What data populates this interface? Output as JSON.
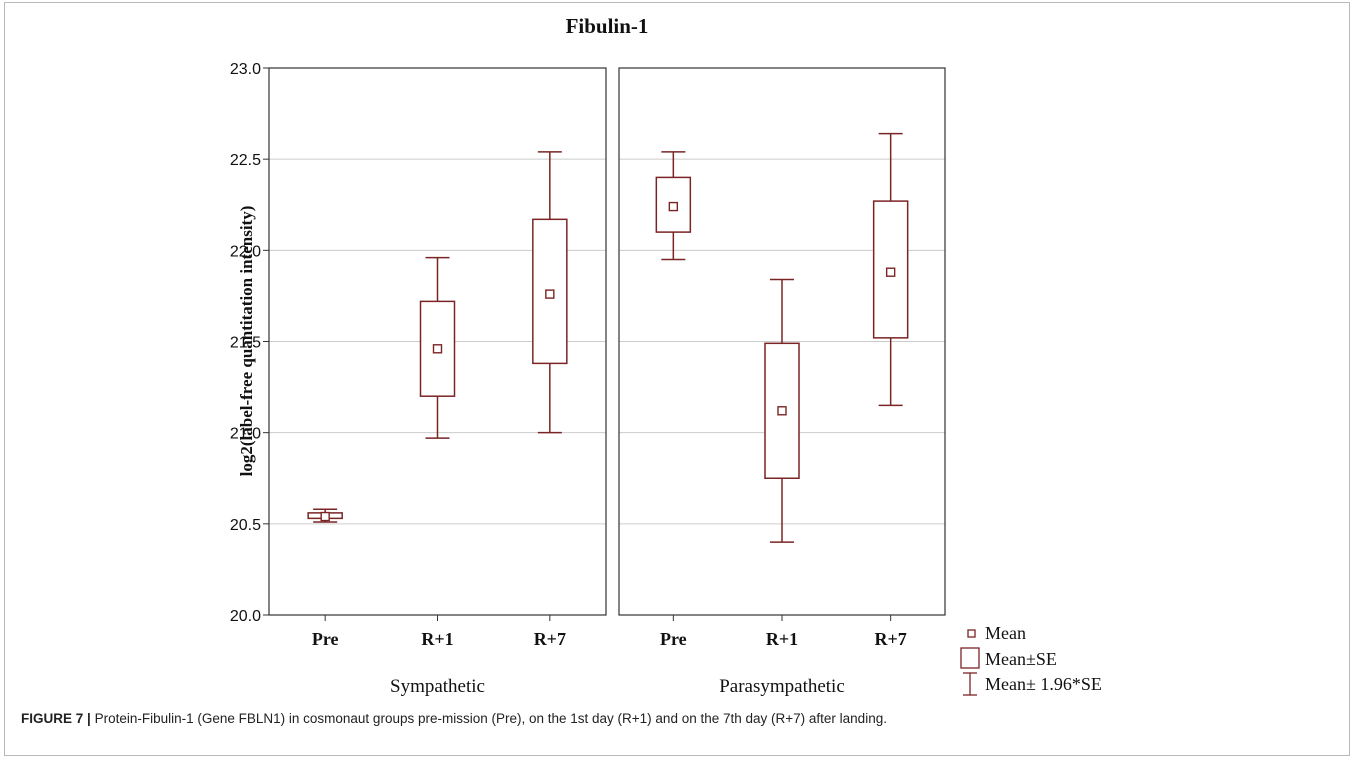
{
  "chart_data": {
    "type": "boxplot",
    "title": "Fibulin-1",
    "ylabel": "log2(label-free quantitation intensity)",
    "ylim": [
      20.0,
      23.0
    ],
    "yticks": [
      "20.0",
      "20.5",
      "21.0",
      "21.5",
      "22.0",
      "22.5",
      "23.0"
    ],
    "grid": true,
    "panels": [
      {
        "name": "Sympathetic",
        "categories": [
          "Pre",
          "R+1",
          "R+7"
        ],
        "mean": [
          20.54,
          21.46,
          21.76
        ],
        "se_low": [
          20.53,
          21.2,
          21.38
        ],
        "se_high": [
          20.56,
          21.72,
          22.17
        ],
        "ci_low": [
          20.51,
          20.97,
          21.0
        ],
        "ci_high": [
          20.58,
          21.96,
          22.54
        ]
      },
      {
        "name": "Parasympathetic",
        "categories": [
          "Pre",
          "R+1",
          "R+7"
        ],
        "mean": [
          22.24,
          21.12,
          21.88
        ],
        "se_low": [
          22.1,
          20.75,
          21.52
        ],
        "se_high": [
          22.4,
          21.49,
          22.27
        ],
        "ci_low": [
          21.95,
          20.4,
          21.15
        ],
        "ci_high": [
          22.54,
          21.84,
          22.64
        ]
      }
    ],
    "legend": {
      "placement": "bottom-right",
      "entries": [
        "Mean",
        "Mean±SE",
        "Mean± 1.96*SE"
      ]
    },
    "colors": {
      "box": "#7a2424",
      "grid": "#cccccc",
      "axis": "#333333"
    }
  },
  "caption": {
    "label": "FIGURE 7 |",
    "text": "Protein-Fibulin-1 (Gene FBLN1) in cosmonaut groups pre-mission (Pre), on the 1st day (R+1) and on the 7th day (R+7) after landing."
  }
}
